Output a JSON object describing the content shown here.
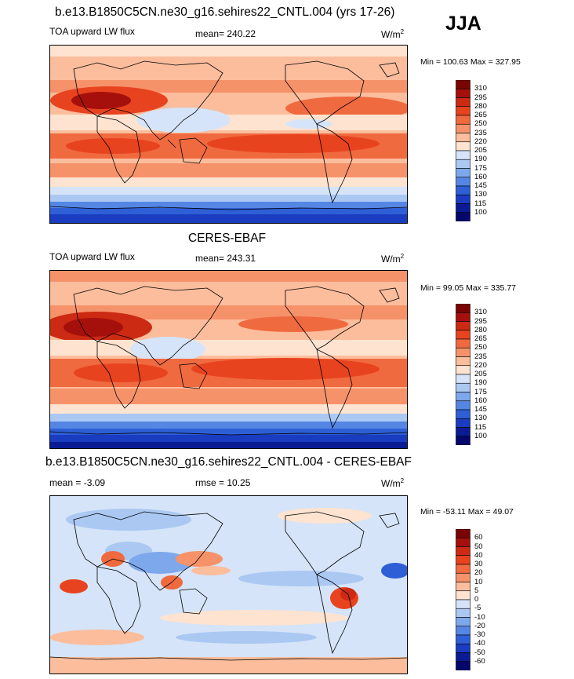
{
  "season": "JJA",
  "panels": [
    {
      "title": "b.e13.B1850C5CN.ne30_g16.sehires22_CNTL.004 (yrs 17-26)",
      "variable": "TOA upward LW flux",
      "stat_text": "mean= 240.22",
      "stat2_text": "",
      "units_base": "W/m",
      "units_sup": "2",
      "minmax": "Min = 100.63 Max = 327.95",
      "levels": [
        "310",
        "295",
        "280",
        "265",
        "250",
        "235",
        "220",
        "205",
        "190",
        "175",
        "160",
        "145",
        "130",
        "115",
        "100"
      ]
    },
    {
      "title": "CERES-EBAF",
      "variable": "TOA upward LW flux",
      "stat_text": "mean= 243.31",
      "stat2_text": "",
      "units_base": "W/m",
      "units_sup": "2",
      "minmax": "Min =  99.05 Max = 335.77",
      "levels": [
        "310",
        "295",
        "280",
        "265",
        "250",
        "235",
        "220",
        "205",
        "190",
        "175",
        "160",
        "145",
        "130",
        "115",
        "100"
      ]
    },
    {
      "title": "b.e13.B1850C5CN.ne30_g16.sehires22_CNTL.004 - CERES-EBAF",
      "variable": "",
      "stat_text": "mean =  -3.09",
      "stat2_text": "rmse =  10.25",
      "units_base": "W/m",
      "units_sup": "2",
      "minmax": "Min = -53.11 Max =  49.07",
      "levels": [
        "60",
        "50",
        "40",
        "30",
        "20",
        "10",
        "5",
        "0",
        "-5",
        "-10",
        "-20",
        "-30",
        "-40",
        "-50",
        "-60"
      ]
    }
  ],
  "colors": {
    "scale": [
      "#7a0403",
      "#a6100c",
      "#cc2a12",
      "#e8431f",
      "#f06a3f",
      "#f6926a",
      "#fbbd9c",
      "#fde3d0",
      "#d5e4f8",
      "#aac8f2",
      "#7ea8ec",
      "#5586e4",
      "#2e5fd6",
      "#1a3cc0",
      "#0a1b94",
      "#04076b"
    ]
  },
  "chart_data": [
    {
      "type": "heatmap",
      "title": "b.e13.B1850C5CN.ne30_g16.sehires22_CNTL.004 (yrs 17-26)",
      "variable": "TOA upward LW flux",
      "units": "W/m2",
      "mean": 240.22,
      "min": 100.63,
      "max": 327.95,
      "contour_levels": [
        100,
        115,
        130,
        145,
        160,
        175,
        190,
        205,
        220,
        235,
        250,
        265,
        280,
        295,
        310
      ]
    },
    {
      "type": "heatmap",
      "title": "CERES-EBAF",
      "variable": "TOA upward LW flux",
      "units": "W/m2",
      "mean": 243.31,
      "min": 99.05,
      "max": 335.77,
      "contour_levels": [
        100,
        115,
        130,
        145,
        160,
        175,
        190,
        205,
        220,
        235,
        250,
        265,
        280,
        295,
        310
      ]
    },
    {
      "type": "heatmap",
      "title": "b.e13.B1850C5CN.ne30_g16.sehires22_CNTL.004 - CERES-EBAF",
      "units": "W/m2",
      "mean": -3.09,
      "rmse": 10.25,
      "min": -53.11,
      "max": 49.07,
      "contour_levels": [
        -60,
        -50,
        -40,
        -30,
        -20,
        -10,
        -5,
        0,
        5,
        10,
        20,
        30,
        40,
        50,
        60
      ]
    }
  ]
}
